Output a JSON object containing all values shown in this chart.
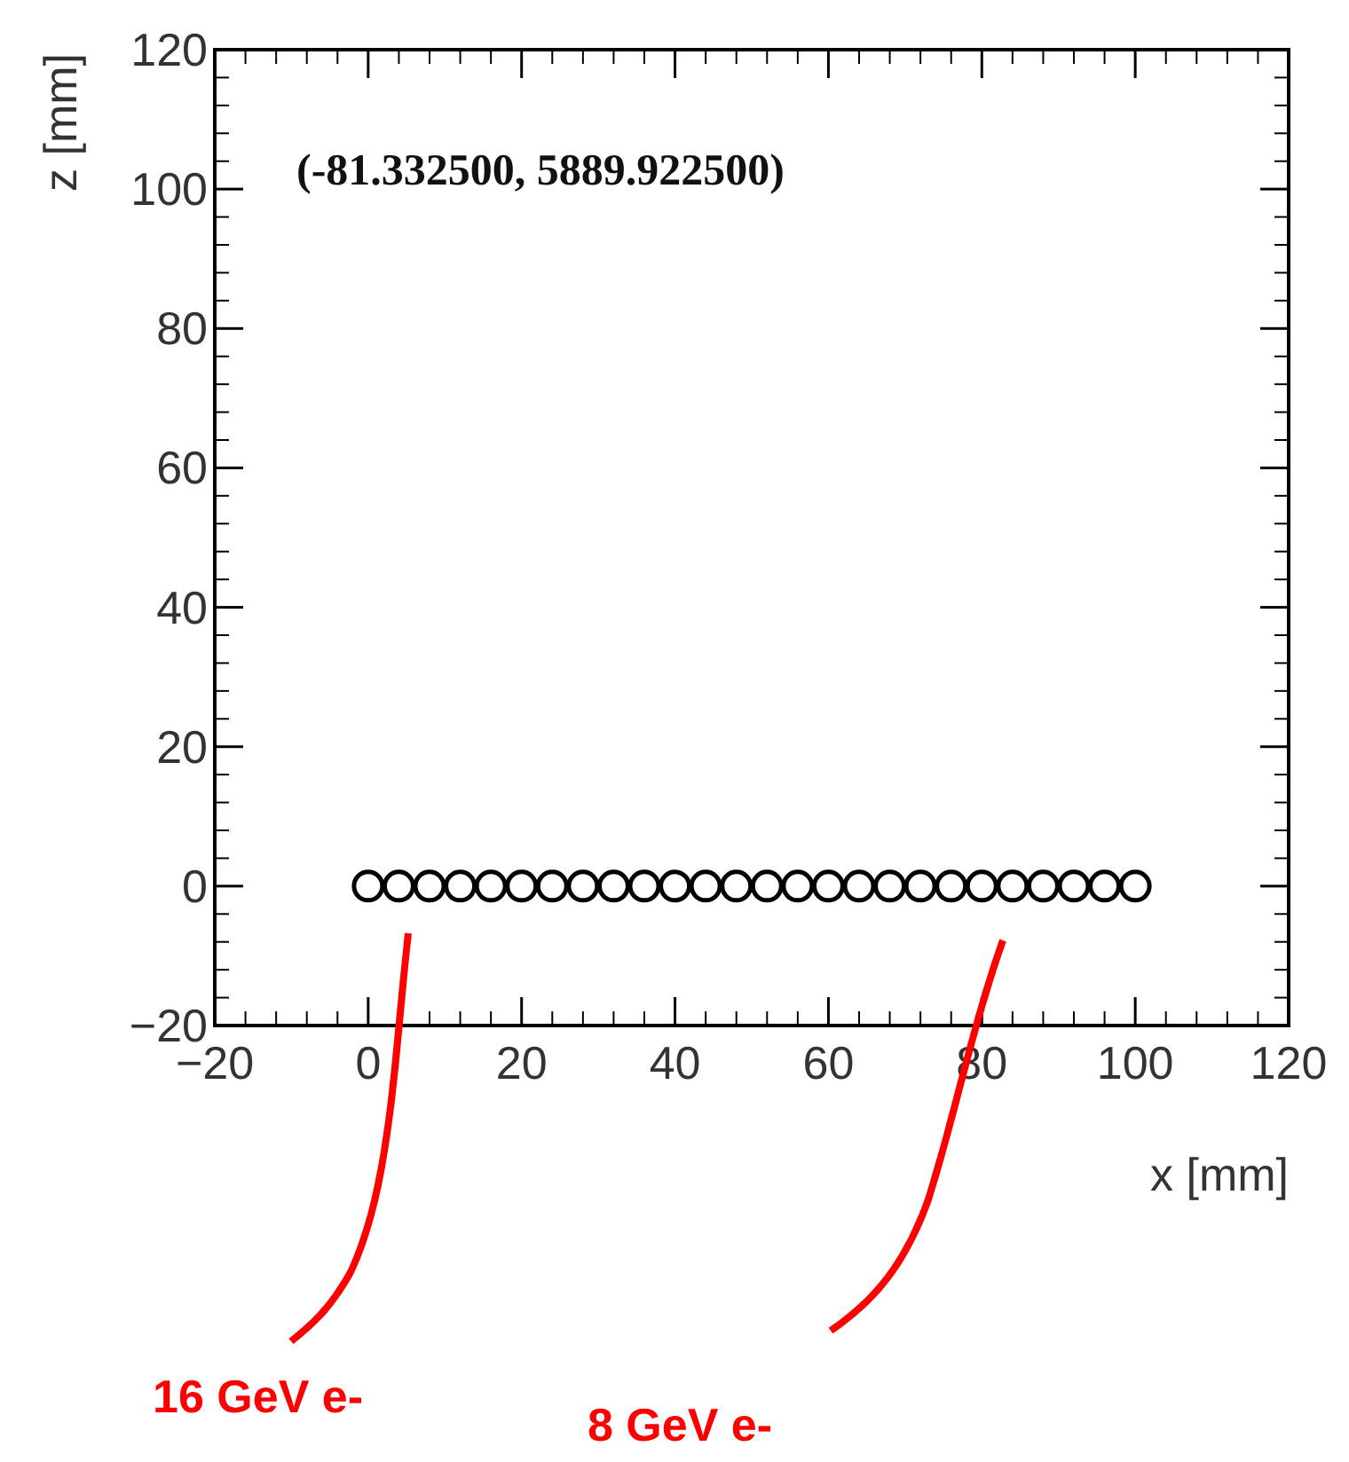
{
  "chart_data": {
    "type": "scatter",
    "title": "(-81.332500, 5889.922500)",
    "xlabel": "x [mm]",
    "ylabel": "z [mm]",
    "x": [
      0,
      4,
      8,
      12,
      16,
      20,
      24,
      28,
      32,
      36,
      40,
      44,
      48,
      52,
      56,
      60,
      64,
      68,
      72,
      76,
      80,
      84,
      88,
      92,
      96,
      100
    ],
    "series": [
      {
        "color": "#000000",
        "values": [
          0,
          0,
          0,
          0,
          0,
          0,
          0,
          0,
          0,
          0,
          0,
          0,
          0,
          0,
          0,
          0,
          0,
          0,
          0,
          0,
          0,
          0,
          0,
          0,
          0,
          0
        ]
      }
    ],
    "xlim": [
      -20,
      120
    ],
    "xticks": [
      -20,
      0,
      20,
      40,
      60,
      80,
      100,
      120
    ],
    "ylim": [
      -20,
      120
    ],
    "yticks": [
      -20,
      0,
      20,
      40,
      60,
      80,
      100,
      120
    ],
    "marker": "circle",
    "grid": false,
    "annotations": [
      "16 GeV e-",
      "8 GeV e-"
    ]
  }
}
